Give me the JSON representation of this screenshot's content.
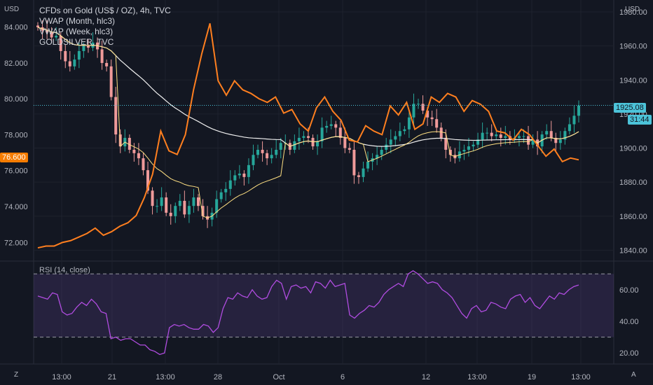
{
  "chart": {
    "currency_left": "USD",
    "currency_right": "USD",
    "legend": [
      "CFDs on Gold (US$ / OZ), 4h, TVC",
      "VWAP (Month, hlc3)",
      "VWAP (Week, hlc3)",
      "GOLDSILVER, TVC"
    ],
    "rsi_label": "RSI (14, close)",
    "corner_left": "Z",
    "corner_right": "A",
    "price_badge": "1925.08",
    "countdown_badge": "31:44",
    "ratio_badge": "76.600",
    "colors": {
      "background": "#131722",
      "up": "#26a69a",
      "down": "#ef9a9a",
      "ratio": "#ff7f1f",
      "vwap_month": "#f0f0f0",
      "vwap_week": "#ffe082",
      "rsi": "#b04ce0",
      "badge_blue": "#4cc3d9",
      "badge_orange": "#f57c00"
    }
  },
  "chart_data": {
    "type": "line",
    "left_axis": {
      "ylim": [
        71.0,
        85.5
      ],
      "ticks": [
        "84.000",
        "82.000",
        "80.000",
        "78.000",
        "76.000",
        "74.000",
        "72.000"
      ],
      "tick_values": [
        84,
        82,
        80,
        78,
        76,
        74,
        72
      ]
    },
    "right_axis": {
      "ylim": [
        1834,
        1987
      ],
      "ticks": [
        "1980.00",
        "1960.00",
        "1940.00",
        "1920.00",
        "1900.00",
        "1880.00",
        "1860.00",
        "1840.00"
      ],
      "tick_values": [
        1980,
        1960,
        1940,
        1920,
        1900,
        1880,
        1860,
        1840
      ]
    },
    "x_ticks": [
      "13:00",
      "21",
      "13:00",
      "28",
      "Oct",
      "6",
      "12",
      "13:00",
      "19",
      "13:00"
    ],
    "gold_close": [
      1971,
      1969,
      1968,
      1965,
      1966,
      1957,
      1951,
      1948,
      1952,
      1957,
      1960,
      1959,
      1962,
      1958,
      1950,
      1948,
      1930,
      1908,
      1901,
      1906,
      1899,
      1897,
      1894,
      1887,
      1875,
      1866,
      1866,
      1871,
      1862,
      1860,
      1866,
      1869,
      1861,
      1866,
      1871,
      1866,
      1860,
      1858,
      1862,
      1870,
      1874,
      1876,
      1881,
      1884,
      1885,
      1883,
      1890,
      1896,
      1899,
      1897,
      1894,
      1896,
      1899,
      1903,
      1903,
      1899,
      1904,
      1906,
      1907,
      1906,
      1901,
      1904,
      1912,
      1913,
      1914,
      1912,
      1906,
      1900,
      1899,
      1884,
      1883,
      1888,
      1892,
      1894,
      1896,
      1899,
      1902,
      1905,
      1907,
      1910,
      1911,
      1918,
      1926,
      1926,
      1922,
      1918,
      1917,
      1912,
      1906,
      1899,
      1896,
      1894,
      1898,
      1899,
      1901,
      1902,
      1905,
      1909,
      1909,
      1907,
      1908,
      1906,
      1907,
      1905,
      1906,
      1907,
      1907,
      1902,
      1905,
      1901,
      1908,
      1910,
      1906,
      1903,
      1905,
      1910,
      1914,
      1919,
      1925
    ],
    "goldsilver": [
      71.7,
      71.8,
      71.8,
      72.0,
      72.1,
      72.3,
      72.5,
      72.8,
      72.4,
      72.6,
      72.9,
      73.1,
      73.5,
      74.5,
      75.8,
      78.2,
      77.1,
      76.9,
      78.0,
      80.5,
      82.5,
      84.2,
      81.0,
      80.2,
      81.0,
      80.5,
      80.3,
      80.0,
      79.8,
      80.1,
      79.2,
      79.4,
      78.6,
      78.2,
      79.5,
      80.1,
      79.3,
      78.8,
      77.7,
      77.6,
      78.5,
      78.2,
      78.0,
      79.6,
      79.1,
      79.8,
      78.3,
      78.6,
      80.1,
      79.8,
      80.3,
      80.1,
      79.3,
      79.9,
      79.7,
      79.3,
      78.2,
      78.1,
      77.7,
      78.3,
      78.0,
      77.4,
      76.8,
      77.2,
      76.5,
      76.7,
      76.6
    ],
    "rsi": [
      56,
      55,
      54,
      58,
      57,
      46,
      44,
      45,
      49,
      52,
      50,
      54,
      51,
      46,
      45,
      29,
      30,
      28,
      29,
      29,
      27,
      25,
      25,
      22,
      21,
      19,
      20,
      36,
      38,
      37,
      38,
      36,
      35,
      35,
      38,
      37,
      33,
      36,
      48,
      55,
      54,
      58,
      56,
      55,
      60,
      56,
      54,
      55,
      62,
      66,
      64,
      54,
      62,
      63,
      61,
      62,
      58,
      65,
      64,
      61,
      66,
      62,
      63,
      64,
      44,
      42,
      45,
      47,
      50,
      49,
      52,
      57,
      60,
      62,
      64,
      62,
      70,
      72,
      70,
      67,
      64,
      65,
      64,
      60,
      58,
      55,
      50,
      45,
      42,
      48,
      50,
      46,
      47,
      52,
      51,
      49,
      48,
      54,
      56,
      57,
      52,
      55,
      50,
      48,
      52,
      56,
      54,
      58,
      57,
      60,
      62,
      63
    ],
    "rsi_ylim": [
      13,
      75
    ],
    "rsi_ticks": [
      "60.00",
      "40.00",
      "20.00"
    ],
    "rsi_tick_values": [
      60,
      40,
      20
    ],
    "rsi_bands": [
      70,
      30
    ],
    "current_price": 1925.08
  }
}
